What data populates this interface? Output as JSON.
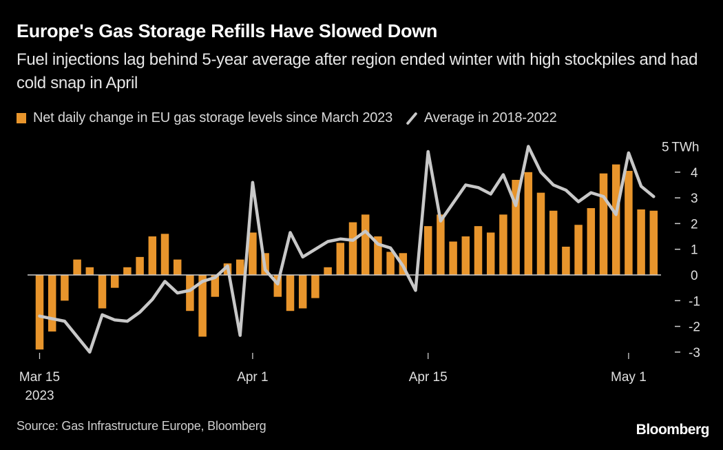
{
  "title": "Europe's Gas Storage Refills Have Slowed Down",
  "subtitle": "Fuel injections lag behind 5-year average after region ended winter with high stockpiles and had cold snap in April",
  "source": "Source: Gas Infrastructure Europe, Bloomberg",
  "logo": "Bloomberg",
  "colors": {
    "bar": "#E8952C",
    "line": "#C8C8C8",
    "background": "#000000",
    "zero_line": "#D0D0D0",
    "text": "#FFFFFF"
  },
  "chart_data": {
    "type": "bar+line",
    "title": "Europe's Gas Storage Refills Have Slowed Down",
    "ylabel": "TWh",
    "y_unit_label": "5 TWh",
    "ylim": [
      -3,
      5
    ],
    "yticks": [
      5,
      4,
      3,
      2,
      1,
      0,
      -1,
      -2,
      -3
    ],
    "ytick_labels": [
      "5",
      "4",
      "3",
      "2",
      "1",
      "0",
      "-1",
      "-2",
      "-3"
    ],
    "x_start": "2023-03-15",
    "x_ticks": [
      {
        "index": 0,
        "label": "Mar 15",
        "sublabel": "2023"
      },
      {
        "index": 17,
        "label": "Apr 1",
        "sublabel": ""
      },
      {
        "index": 31,
        "label": "Apr 15",
        "sublabel": ""
      },
      {
        "index": 47,
        "label": "May 1",
        "sublabel": ""
      }
    ],
    "legend": [
      {
        "name": "Net daily change in EU gas storage levels since March 2023",
        "type": "bar"
      },
      {
        "name": "Average in 2018-2022",
        "type": "line"
      }
    ],
    "legend_position": "top-left",
    "grid": false,
    "series": [
      {
        "name": "Net daily change in EU gas storage levels since March 2023",
        "type": "bar",
        "values": [
          -2.9,
          -2.2,
          -1.0,
          0.6,
          0.3,
          -1.3,
          -0.5,
          0.3,
          0.7,
          1.5,
          1.6,
          0.6,
          -1.4,
          -2.4,
          -0.85,
          0.45,
          0.6,
          1.65,
          0.85,
          -0.85,
          -1.4,
          -1.3,
          -0.9,
          0.3,
          1.25,
          2.05,
          2.35,
          1.5,
          0.9,
          0.85,
          0,
          1.9,
          2.35,
          1.3,
          1.5,
          1.9,
          1.65,
          2.35,
          3.7,
          4.0,
          3.2,
          2.5,
          1.1,
          1.95,
          2.6,
          3.95,
          4.3,
          4.05,
          2.55,
          2.5
        ]
      },
      {
        "name": "Average in 2018-2022",
        "type": "line",
        "values": [
          -1.6,
          -1.7,
          -1.8,
          -2.4,
          -3.0,
          -1.55,
          -1.75,
          -1.8,
          -1.45,
          -0.95,
          -0.25,
          -0.7,
          -0.6,
          -0.25,
          -0.1,
          0.35,
          -2.35,
          3.6,
          0.2,
          -0.35,
          1.65,
          0.7,
          1.0,
          1.3,
          1.4,
          1.35,
          1.7,
          1.2,
          1.05,
          0.35,
          -0.6,
          4.8,
          2.1,
          2.8,
          3.5,
          3.4,
          3.15,
          3.9,
          2.7,
          5.0,
          4.0,
          3.5,
          3.3,
          2.85,
          3.2,
          3.05,
          2.35,
          4.75,
          3.45,
          3.05
        ]
      }
    ]
  }
}
